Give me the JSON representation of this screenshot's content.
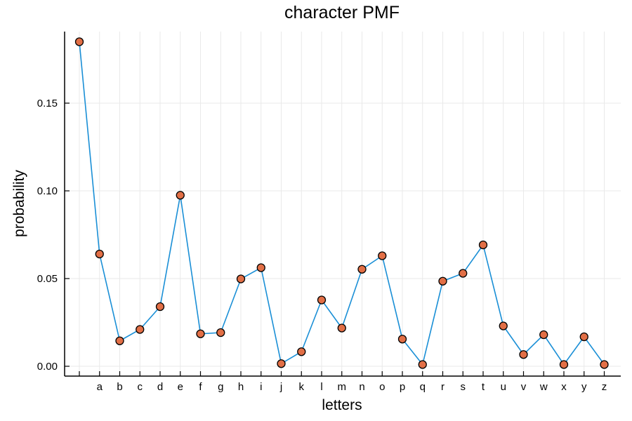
{
  "chart_data": {
    "type": "line",
    "title": "character PMF",
    "xlabel": "letters",
    "ylabel": "probability",
    "categories": [
      "",
      "a",
      "b",
      "c",
      "d",
      "e",
      "f",
      "g",
      "h",
      "i",
      "j",
      "k",
      "l",
      "m",
      "n",
      "o",
      "p",
      "q",
      "r",
      "s",
      "t",
      "u",
      "v",
      "w",
      "x",
      "y",
      "z"
    ],
    "series": [
      {
        "values": [
          0.185,
          0.064,
          0.0145,
          0.021,
          0.034,
          0.0975,
          0.0185,
          0.0192,
          0.0498,
          0.0562,
          0.0015,
          0.0083,
          0.0378,
          0.0218,
          0.0553,
          0.063,
          0.0155,
          0.001,
          0.0485,
          0.053,
          0.0692,
          0.023,
          0.0067,
          0.018,
          0.001,
          0.0168,
          0.001
        ],
        "line_color": "#1a8fd6",
        "marker_color": "#e26f46"
      }
    ],
    "ylim": [
      -0.005,
      0.19
    ],
    "yticks": [
      0.0,
      0.05,
      0.1,
      0.15
    ],
    "ytick_labels": [
      "0.00",
      "0.05",
      "0.10",
      "0.15"
    ],
    "grid": true,
    "legend": "none"
  }
}
